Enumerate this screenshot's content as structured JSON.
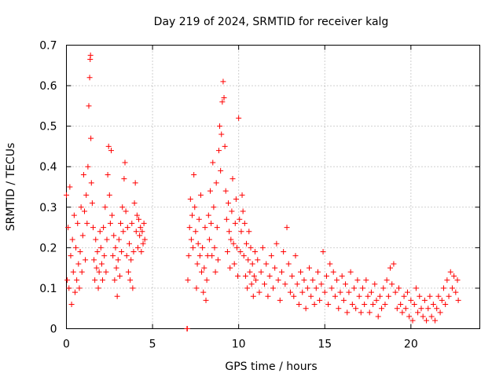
{
  "chart_data": {
    "type": "scatter",
    "title": "Day 219 of 2024, SRMTID for receiver kalg",
    "xlabel": "GPS time / hours",
    "ylabel": "SRMTID / TECUs",
    "xlim": [
      0,
      24
    ],
    "ylim": [
      0,
      0.7
    ],
    "xticks": [
      0,
      5,
      10,
      15,
      20
    ],
    "xtick_labels": [
      "0",
      "5",
      "10",
      "15",
      "20"
    ],
    "yticks": [
      0,
      0.1,
      0.2,
      0.3,
      0.4,
      0.5,
      0.6,
      0.7
    ],
    "ytick_labels": [
      "0",
      "0.1",
      "0.2",
      "0.3",
      "0.4",
      "0.5",
      "0.6",
      "0.7"
    ],
    "grid": true,
    "marker": "+",
    "color": "#ff0000",
    "series": [
      {
        "name": "SRMTID",
        "points": [
          [
            0.0,
            0.33
          ],
          [
            0.05,
            0.12
          ],
          [
            0.1,
            0.25
          ],
          [
            0.15,
            0.1
          ],
          [
            0.2,
            0.35
          ],
          [
            0.25,
            0.18
          ],
          [
            0.3,
            0.06
          ],
          [
            0.35,
            0.22
          ],
          [
            0.4,
            0.14
          ],
          [
            0.45,
            0.28
          ],
          [
            0.5,
            0.09
          ],
          [
            0.55,
            0.2
          ],
          [
            0.6,
            0.12
          ],
          [
            0.65,
            0.26
          ],
          [
            0.7,
            0.16
          ],
          [
            0.75,
            0.1
          ],
          [
            0.8,
            0.19
          ],
          [
            0.85,
            0.3
          ],
          [
            0.9,
            0.14
          ],
          [
            0.95,
            0.23
          ],
          [
            1.0,
            0.38
          ],
          [
            1.05,
            0.29
          ],
          [
            1.1,
            0.17
          ],
          [
            1.15,
            0.33
          ],
          [
            1.2,
            0.26
          ],
          [
            1.25,
            0.4
          ],
          [
            1.3,
            0.55
          ],
          [
            1.35,
            0.62
          ],
          [
            1.38,
            0.665
          ],
          [
            1.4,
            0.675
          ],
          [
            1.42,
            0.47
          ],
          [
            1.45,
            0.36
          ],
          [
            1.5,
            0.31
          ],
          [
            1.55,
            0.25
          ],
          [
            1.6,
            0.17
          ],
          [
            1.65,
            0.12
          ],
          [
            1.7,
            0.22
          ],
          [
            1.75,
            0.15
          ],
          [
            1.8,
            0.19
          ],
          [
            1.85,
            0.1
          ],
          [
            1.9,
            0.14
          ],
          [
            1.95,
            0.24
          ],
          [
            2.0,
            0.2
          ],
          [
            2.05,
            0.16
          ],
          [
            2.1,
            0.12
          ],
          [
            2.15,
            0.25
          ],
          [
            2.2,
            0.18
          ],
          [
            2.25,
            0.3
          ],
          [
            2.3,
            0.14
          ],
          [
            2.35,
            0.22
          ],
          [
            2.4,
            0.38
          ],
          [
            2.45,
            0.45
          ],
          [
            2.5,
            0.33
          ],
          [
            2.55,
            0.26
          ],
          [
            2.6,
            0.44
          ],
          [
            2.65,
            0.28
          ],
          [
            2.7,
            0.18
          ],
          [
            2.75,
            0.23
          ],
          [
            2.8,
            0.12
          ],
          [
            2.85,
            0.2
          ],
          [
            2.9,
            0.15
          ],
          [
            2.95,
            0.08
          ],
          [
            3.0,
            0.17
          ],
          [
            3.05,
            0.22
          ],
          [
            3.1,
            0.13
          ],
          [
            3.15,
            0.26
          ],
          [
            3.2,
            0.19
          ],
          [
            3.25,
            0.3
          ],
          [
            3.3,
            0.24
          ],
          [
            3.35,
            0.37
          ],
          [
            3.4,
            0.41
          ],
          [
            3.45,
            0.29
          ],
          [
            3.5,
            0.18
          ],
          [
            3.55,
            0.25
          ],
          [
            3.6,
            0.14
          ],
          [
            3.65,
            0.21
          ],
          [
            3.7,
            0.12
          ],
          [
            3.75,
            0.17
          ],
          [
            3.8,
            0.26
          ],
          [
            3.85,
            0.1
          ],
          [
            3.9,
            0.19
          ],
          [
            3.95,
            0.31
          ],
          [
            4.0,
            0.36
          ],
          [
            4.05,
            0.24
          ],
          [
            4.1,
            0.28
          ],
          [
            4.15,
            0.2
          ],
          [
            4.2,
            0.27
          ],
          [
            4.25,
            0.23
          ],
          [
            4.3,
            0.25
          ],
          [
            4.35,
            0.19
          ],
          [
            4.4,
            0.24
          ],
          [
            4.45,
            0.21
          ],
          [
            4.5,
            0.26
          ],
          [
            4.55,
            0.22
          ],
          [
            7.0,
            0.0
          ],
          [
            7.02,
            0.0
          ],
          [
            7.05,
            0.12
          ],
          [
            7.1,
            0.18
          ],
          [
            7.15,
            0.25
          ],
          [
            7.2,
            0.32
          ],
          [
            7.25,
            0.22
          ],
          [
            7.3,
            0.28
          ],
          [
            7.35,
            0.2
          ],
          [
            7.4,
            0.38
          ],
          [
            7.45,
            0.3
          ],
          [
            7.5,
            0.24
          ],
          [
            7.55,
            0.1
          ],
          [
            7.6,
            0.16
          ],
          [
            7.65,
            0.21
          ],
          [
            7.7,
            0.27
          ],
          [
            7.75,
            0.18
          ],
          [
            7.8,
            0.33
          ],
          [
            7.85,
            0.14
          ],
          [
            7.9,
            0.2
          ],
          [
            7.95,
            0.09
          ],
          [
            8.0,
            0.15
          ],
          [
            8.05,
            0.25
          ],
          [
            8.1,
            0.07
          ],
          [
            8.15,
            0.12
          ],
          [
            8.2,
            0.18
          ],
          [
            8.25,
            0.28
          ],
          [
            8.3,
            0.22
          ],
          [
            8.35,
            0.34
          ],
          [
            8.4,
            0.26
          ],
          [
            8.45,
            0.18
          ],
          [
            8.5,
            0.41
          ],
          [
            8.55,
            0.3
          ],
          [
            8.6,
            0.2
          ],
          [
            8.65,
            0.14
          ],
          [
            8.7,
            0.36
          ],
          [
            8.75,
            0.25
          ],
          [
            8.8,
            0.17
          ],
          [
            8.85,
            0.44
          ],
          [
            8.9,
            0.5
          ],
          [
            8.95,
            0.39
          ],
          [
            9.0,
            0.48
          ],
          [
            9.05,
            0.56
          ],
          [
            9.1,
            0.61
          ],
          [
            9.15,
            0.57
          ],
          [
            9.2,
            0.45
          ],
          [
            9.25,
            0.34
          ],
          [
            9.3,
            0.27
          ],
          [
            9.35,
            0.19
          ],
          [
            9.4,
            0.31
          ],
          [
            9.45,
            0.24
          ],
          [
            9.5,
            0.15
          ],
          [
            9.55,
            0.22
          ],
          [
            9.6,
            0.29
          ],
          [
            9.65,
            0.37
          ],
          [
            9.7,
            0.21
          ],
          [
            9.75,
            0.16
          ],
          [
            9.8,
            0.26
          ],
          [
            9.85,
            0.32
          ],
          [
            9.9,
            0.2
          ],
          [
            9.95,
            0.13
          ],
          [
            10.0,
            0.52
          ],
          [
            10.05,
            0.27
          ],
          [
            10.1,
            0.19
          ],
          [
            10.15,
            0.24
          ],
          [
            10.2,
            0.33
          ],
          [
            10.25,
            0.29
          ],
          [
            10.3,
            0.18
          ],
          [
            10.35,
            0.26
          ],
          [
            10.4,
            0.13
          ],
          [
            10.45,
            0.21
          ],
          [
            10.5,
            0.1
          ],
          [
            10.55,
            0.17
          ],
          [
            10.6,
            0.24
          ],
          [
            10.65,
            0.14
          ],
          [
            10.7,
            0.2
          ],
          [
            10.75,
            0.11
          ],
          [
            10.8,
            0.16
          ],
          [
            10.85,
            0.08
          ],
          [
            10.9,
            0.13
          ],
          [
            10.95,
            0.19
          ],
          [
            11.0,
            0.12
          ],
          [
            11.1,
            0.17
          ],
          [
            11.2,
            0.09
          ],
          [
            11.3,
            0.14
          ],
          [
            11.4,
            0.2
          ],
          [
            11.5,
            0.11
          ],
          [
            11.6,
            0.16
          ],
          [
            11.7,
            0.08
          ],
          [
            11.8,
            0.13
          ],
          [
            11.9,
            0.18
          ],
          [
            12.0,
            0.1
          ],
          [
            12.1,
            0.15
          ],
          [
            12.2,
            0.21
          ],
          [
            12.3,
            0.12
          ],
          [
            12.4,
            0.07
          ],
          [
            12.5,
            0.14
          ],
          [
            12.6,
            0.19
          ],
          [
            12.7,
            0.11
          ],
          [
            12.8,
            0.25
          ],
          [
            12.9,
            0.16
          ],
          [
            13.0,
            0.09
          ],
          [
            13.1,
            0.13
          ],
          [
            13.2,
            0.08
          ],
          [
            13.3,
            0.18
          ],
          [
            13.4,
            0.11
          ],
          [
            13.5,
            0.06
          ],
          [
            13.6,
            0.14
          ],
          [
            13.7,
            0.09
          ],
          [
            13.8,
            0.12
          ],
          [
            13.9,
            0.05
          ],
          [
            14.0,
            0.1
          ],
          [
            14.1,
            0.15
          ],
          [
            14.2,
            0.08
          ],
          [
            14.3,
            0.12
          ],
          [
            14.4,
            0.06
          ],
          [
            14.5,
            0.1
          ],
          [
            14.6,
            0.14
          ],
          [
            14.7,
            0.07
          ],
          [
            14.8,
            0.11
          ],
          [
            14.9,
            0.19
          ],
          [
            15.0,
            0.09
          ],
          [
            15.1,
            0.13
          ],
          [
            15.2,
            0.06
          ],
          [
            15.3,
            0.16
          ],
          [
            15.4,
            0.1
          ],
          [
            15.5,
            0.14
          ],
          [
            15.6,
            0.08
          ],
          [
            15.7,
            0.12
          ],
          [
            15.8,
            0.05
          ],
          [
            15.9,
            0.09
          ],
          [
            16.0,
            0.13
          ],
          [
            16.1,
            0.07
          ],
          [
            16.2,
            0.11
          ],
          [
            16.3,
            0.04
          ],
          [
            16.4,
            0.09
          ],
          [
            16.5,
            0.14
          ],
          [
            16.6,
            0.06
          ],
          [
            16.7,
            0.1
          ],
          [
            16.8,
            0.05
          ],
          [
            16.9,
            0.12
          ],
          [
            17.0,
            0.08
          ],
          [
            17.1,
            0.04
          ],
          [
            17.2,
            0.1
          ],
          [
            17.3,
            0.06
          ],
          [
            17.4,
            0.12
          ],
          [
            17.5,
            0.08
          ],
          [
            17.6,
            0.04
          ],
          [
            17.7,
            0.09
          ],
          [
            17.8,
            0.06
          ],
          [
            17.9,
            0.11
          ],
          [
            18.0,
            0.07
          ],
          [
            18.1,
            0.03
          ],
          [
            18.2,
            0.08
          ],
          [
            18.3,
            0.05
          ],
          [
            18.4,
            0.1
          ],
          [
            18.5,
            0.06
          ],
          [
            18.6,
            0.12
          ],
          [
            18.7,
            0.08
          ],
          [
            18.8,
            0.15
          ],
          [
            18.9,
            0.11
          ],
          [
            19.0,
            0.16
          ],
          [
            19.1,
            0.09
          ],
          [
            19.2,
            0.05
          ],
          [
            19.3,
            0.1
          ],
          [
            19.4,
            0.06
          ],
          [
            19.5,
            0.04
          ],
          [
            19.6,
            0.08
          ],
          [
            19.7,
            0.05
          ],
          [
            19.8,
            0.09
          ],
          [
            19.9,
            0.03
          ],
          [
            20.0,
            0.07
          ],
          [
            20.1,
            0.02
          ],
          [
            20.2,
            0.06
          ],
          [
            20.3,
            0.1
          ],
          [
            20.4,
            0.04
          ],
          [
            20.5,
            0.08
          ],
          [
            20.6,
            0.05
          ],
          [
            20.7,
            0.03
          ],
          [
            20.8,
            0.07
          ],
          [
            20.9,
            0.02
          ],
          [
            21.0,
            0.05
          ],
          [
            21.1,
            0.08
          ],
          [
            21.2,
            0.03
          ],
          [
            21.3,
            0.06
          ],
          [
            21.4,
            0.02
          ],
          [
            21.5,
            0.05
          ],
          [
            21.6,
            0.08
          ],
          [
            21.7,
            0.04
          ],
          [
            21.8,
            0.07
          ],
          [
            21.9,
            0.1
          ],
          [
            22.0,
            0.06
          ],
          [
            22.1,
            0.12
          ],
          [
            22.2,
            0.08
          ],
          [
            22.3,
            0.14
          ],
          [
            22.4,
            0.1
          ],
          [
            22.5,
            0.13
          ],
          [
            22.6,
            0.09
          ],
          [
            22.7,
            0.12
          ],
          [
            22.75,
            0.07
          ]
        ]
      }
    ]
  }
}
